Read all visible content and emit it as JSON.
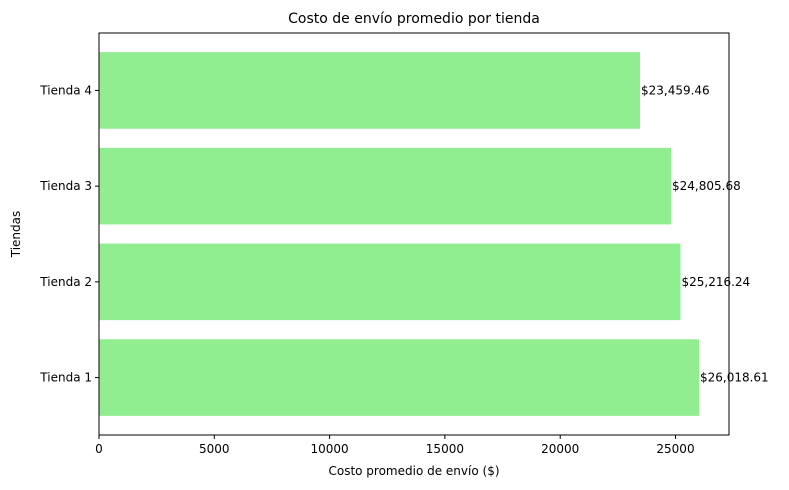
{
  "chart_data": {
    "type": "bar",
    "orientation": "horizontal",
    "title": "Costo de envío promedio por tienda",
    "xlabel": "Costo promedio de envío ($)",
    "ylabel": "Tiendas",
    "categories": [
      "Tienda 1",
      "Tienda 2",
      "Tienda 3",
      "Tienda 4"
    ],
    "values": [
      26018.61,
      25216.24,
      24805.68,
      23459.46
    ],
    "data_labels": [
      "$26,018.61",
      "$25,216.24",
      "$24,805.68",
      "$23,459.46"
    ],
    "xlim": [
      0,
      27320
    ],
    "xticks": [
      0,
      5000,
      10000,
      15000,
      20000,
      25000
    ],
    "xtick_labels": [
      "0",
      "5000",
      "10000",
      "15000",
      "20000",
      "25000"
    ],
    "grid": false,
    "legend": "none",
    "bar_color": "#90ee90"
  }
}
